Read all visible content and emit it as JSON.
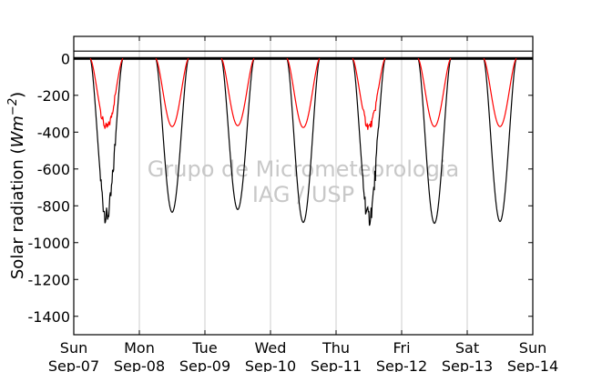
{
  "chart_data": {
    "type": "line",
    "title": "",
    "ylabel": "Solar radiation (W m-2)",
    "ylabel_plain": "Solar radiation (",
    "ylabel_math": "Wm",
    "ylabel_exp": "−2",
    "ylabel_close": ")",
    "xlabel": "",
    "ylim": [
      -1500,
      120
    ],
    "xlim": [
      0,
      7
    ],
    "grid": "vertical",
    "watermark": [
      "Grupo de Micrometeorologia",
      "IAG / USP"
    ],
    "yticks": [
      0,
      -200,
      -400,
      -600,
      -800,
      -1000,
      -1200,
      -1400
    ],
    "xticks": [
      {
        "x": 0,
        "day": "Sun",
        "date": "Sep-07"
      },
      {
        "x": 1,
        "day": "Mon",
        "date": "Sep-08"
      },
      {
        "x": 2,
        "day": "Tue",
        "date": "Sep-09"
      },
      {
        "x": 3,
        "day": "Wed",
        "date": "Sep-10"
      },
      {
        "x": 4,
        "day": "Thu",
        "date": "Sep-11"
      },
      {
        "x": 5,
        "day": "Fri",
        "date": "Sep-12"
      },
      {
        "x": 6,
        "day": "Sat",
        "date": "Sep-13"
      },
      {
        "x": 7,
        "day": "Sun",
        "date": "Sep-14"
      }
    ],
    "reference_lines": [
      {
        "y": 0,
        "color": "#000000"
      },
      {
        "y": 40,
        "color": "#000000"
      }
    ],
    "series": [
      {
        "color": "#000000",
        "day_minima": [
          -860,
          -835,
          -820,
          -890,
          -865,
          -895,
          -885
        ]
      },
      {
        "color": "#ff0000",
        "day_minima": [
          -375,
          -370,
          -365,
          -375,
          -370,
          -370,
          -370
        ]
      }
    ],
    "day_window": {
      "start": 0.25,
      "end": 0.75
    }
  }
}
